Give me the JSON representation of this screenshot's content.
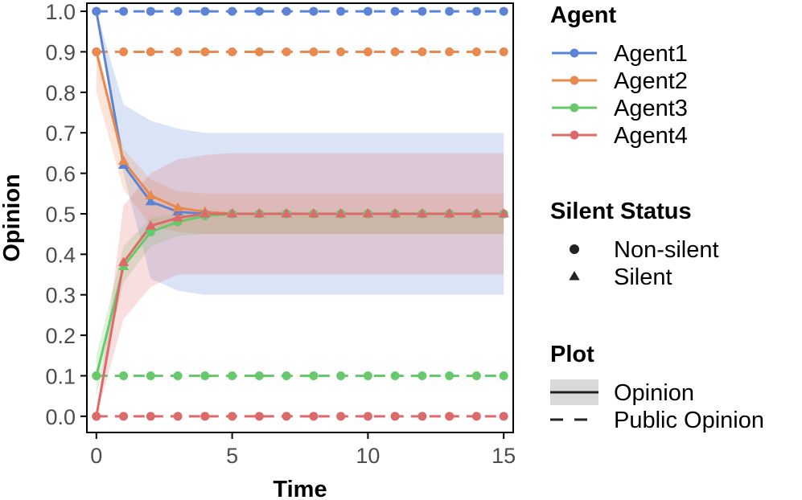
{
  "chart_data": {
    "type": "line",
    "xlabel": "Time",
    "ylabel": "Opinion",
    "xlim": [
      -0.35,
      15.35
    ],
    "ylim": [
      -0.04,
      1.02
    ],
    "x_ticks": [
      0,
      5,
      10,
      15
    ],
    "y_ticks": [
      0.0,
      0.1,
      0.2,
      0.3,
      0.4,
      0.5,
      0.6,
      0.7,
      0.8,
      0.9,
      1.0
    ],
    "x_tick_labels": [
      "0",
      "5",
      "10",
      "15"
    ],
    "y_tick_labels": [
      "0.0",
      "0.1",
      "0.2",
      "0.3",
      "0.4",
      "0.5",
      "0.6",
      "0.7",
      "0.8",
      "0.9",
      "1.0"
    ],
    "x": [
      0,
      1,
      2,
      3,
      4,
      5,
      6,
      7,
      8,
      9,
      10,
      11,
      12,
      13,
      14,
      15
    ],
    "series": [
      {
        "name": "Agent1",
        "color": "#5b84d6",
        "opinion": [
          1.0,
          0.62,
          0.53,
          0.505,
          0.5,
          0.5,
          0.5,
          0.5,
          0.5,
          0.5,
          0.5,
          0.5,
          0.5,
          0.5,
          0.5,
          0.5
        ],
        "band_low": [
          1.0,
          0.6,
          0.34,
          0.31,
          0.3,
          0.3,
          0.3,
          0.3,
          0.3,
          0.3,
          0.3,
          0.3,
          0.3,
          0.3,
          0.3,
          0.3
        ],
        "band_high": [
          1.0,
          0.77,
          0.73,
          0.71,
          0.7,
          0.7,
          0.7,
          0.7,
          0.7,
          0.7,
          0.7,
          0.7,
          0.7,
          0.7,
          0.7,
          0.7
        ],
        "public_opinion": [
          1.0,
          1.0,
          1.0,
          1.0,
          1.0,
          1.0,
          1.0,
          1.0,
          1.0,
          1.0,
          1.0,
          1.0,
          1.0,
          1.0,
          1.0,
          1.0
        ],
        "silent": [
          false,
          true,
          true,
          true,
          false,
          false,
          false,
          false,
          false,
          false,
          false,
          false,
          false,
          false,
          false,
          false
        ]
      },
      {
        "name": "Agent2",
        "color": "#e8894f",
        "opinion": [
          0.9,
          0.63,
          0.545,
          0.515,
          0.505,
          0.5,
          0.5,
          0.5,
          0.5,
          0.5,
          0.5,
          0.5,
          0.5,
          0.5,
          0.5,
          0.5
        ],
        "band_low": [
          0.8,
          0.56,
          0.47,
          0.455,
          0.45,
          0.45,
          0.45,
          0.45,
          0.45,
          0.45,
          0.45,
          0.45,
          0.45,
          0.45,
          0.45,
          0.45
        ],
        "band_high": [
          0.92,
          0.66,
          0.585,
          0.555,
          0.55,
          0.55,
          0.55,
          0.55,
          0.55,
          0.55,
          0.55,
          0.55,
          0.55,
          0.55,
          0.55,
          0.55
        ],
        "public_opinion": [
          0.9,
          0.9,
          0.9,
          0.9,
          0.9,
          0.9,
          0.9,
          0.9,
          0.9,
          0.9,
          0.9,
          0.9,
          0.9,
          0.9,
          0.9,
          0.9
        ],
        "silent": [
          false,
          true,
          true,
          true,
          true,
          true,
          true,
          true,
          true,
          true,
          true,
          true,
          true,
          true,
          true,
          true
        ]
      },
      {
        "name": "Agent3",
        "color": "#67c96b",
        "opinion": [
          0.1,
          0.37,
          0.455,
          0.48,
          0.495,
          0.5,
          0.5,
          0.5,
          0.5,
          0.5,
          0.5,
          0.5,
          0.5,
          0.5,
          0.5,
          0.5
        ],
        "band_low": [
          0.05,
          0.33,
          0.42,
          0.445,
          0.45,
          0.45,
          0.45,
          0.45,
          0.45,
          0.45,
          0.45,
          0.45,
          0.45,
          0.45,
          0.45,
          0.45
        ],
        "band_high": [
          0.15,
          0.42,
          0.49,
          0.5,
          0.505,
          0.505,
          0.505,
          0.505,
          0.505,
          0.505,
          0.505,
          0.505,
          0.505,
          0.505,
          0.505,
          0.505
        ],
        "public_opinion": [
          0.1,
          0.1,
          0.1,
          0.1,
          0.1,
          0.1,
          0.1,
          0.1,
          0.1,
          0.1,
          0.1,
          0.1,
          0.1,
          0.1,
          0.1,
          0.1
        ],
        "silent": [
          false,
          true,
          false,
          false,
          false,
          false,
          false,
          false,
          false,
          false,
          false,
          false,
          false,
          false,
          false,
          false
        ]
      },
      {
        "name": "Agent4",
        "color": "#dd6a6a",
        "opinion": [
          0.0,
          0.38,
          0.47,
          0.49,
          0.5,
          0.5,
          0.5,
          0.5,
          0.5,
          0.5,
          0.5,
          0.5,
          0.5,
          0.5,
          0.5,
          0.5
        ],
        "band_low": [
          0.0,
          0.24,
          0.32,
          0.35,
          0.35,
          0.35,
          0.35,
          0.35,
          0.35,
          0.35,
          0.35,
          0.35,
          0.35,
          0.35,
          0.35,
          0.35
        ],
        "band_high": [
          0.0,
          0.52,
          0.6,
          0.635,
          0.645,
          0.65,
          0.65,
          0.65,
          0.65,
          0.65,
          0.65,
          0.65,
          0.65,
          0.65,
          0.65,
          0.65
        ],
        "public_opinion": [
          0.0,
          0.0,
          0.0,
          0.0,
          0.0,
          0.0,
          0.0,
          0.0,
          0.0,
          0.0,
          0.0,
          0.0,
          0.0,
          0.0,
          0.0,
          0.0
        ],
        "silent": [
          false,
          true,
          true,
          true,
          true,
          true,
          true,
          true,
          true,
          true,
          true,
          true,
          true,
          true,
          true,
          true
        ]
      }
    ],
    "legend": {
      "placement": "right",
      "agent_title": "Agent",
      "status_title": "Silent Status",
      "status_items": [
        {
          "label": "Non-silent",
          "marker": "circle"
        },
        {
          "label": "Silent",
          "marker": "triangle"
        }
      ],
      "plot_title": "Plot",
      "plot_items": [
        {
          "label": "Opinion",
          "style": "solid-with-band"
        },
        {
          "label": "Public Opinion",
          "style": "dashed"
        }
      ]
    },
    "grid": false
  }
}
